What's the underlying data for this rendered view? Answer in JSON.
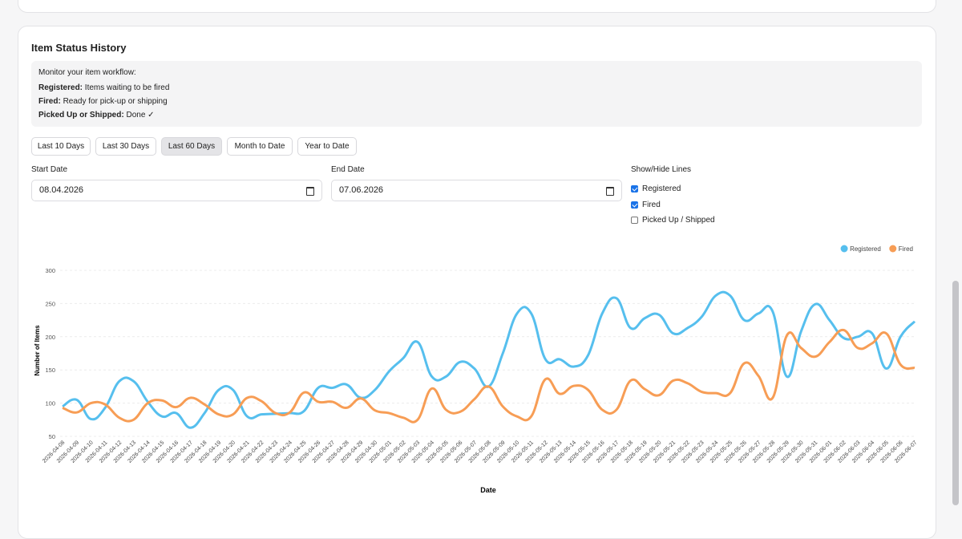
{
  "page": {
    "title": "Item Status History",
    "info": {
      "intro": "Monitor your item workflow:",
      "items": [
        {
          "term": "Registered:",
          "text": "Items waiting to be fired"
        },
        {
          "term": "Fired:",
          "text": "Ready for pick-up or shipping"
        },
        {
          "term": "Picked Up or Shipped:",
          "text": "Done ✓"
        }
      ]
    },
    "buttons": [
      {
        "label": "Last 10 Days",
        "active": false
      },
      {
        "label": "Last 30 Days",
        "active": false
      },
      {
        "label": "Last 60 Days",
        "active": true
      },
      {
        "label": "Month to Date",
        "active": false
      },
      {
        "label": "Year to Date",
        "active": false
      }
    ],
    "start_date": {
      "label": "Start Date",
      "value": "08.04.2026"
    },
    "end_date": {
      "label": "End Date",
      "value": "07.06.2026"
    },
    "lines": {
      "label": "Show/Hide Lines",
      "options": [
        {
          "label": "Registered",
          "checked": true
        },
        {
          "label": "Fired",
          "checked": true
        },
        {
          "label": "Picked Up / Shipped",
          "checked": false
        }
      ]
    }
  },
  "chart_data": {
    "type": "line",
    "x_label": "Date",
    "y_label": "Number of Items",
    "categories": [
      "2026-04-08",
      "2026-04-09",
      "2026-04-10",
      "2026-04-11",
      "2026-04-12",
      "2026-04-13",
      "2026-04-14",
      "2026-04-15",
      "2026-04-16",
      "2026-04-17",
      "2026-04-18",
      "2026-04-19",
      "2026-04-20",
      "2026-04-21",
      "2026-04-22",
      "2026-04-23",
      "2026-04-24",
      "2026-04-25",
      "2026-04-26",
      "2026-04-27",
      "2026-04-28",
      "2026-04-29",
      "2026-04-30",
      "2026-05-01",
      "2026-05-02",
      "2026-05-03",
      "2026-05-04",
      "2026-05-05",
      "2026-05-06",
      "2026-05-07",
      "2026-05-08",
      "2026-05-09",
      "2026-05-10",
      "2026-05-11",
      "2026-05-12",
      "2026-05-13",
      "2026-05-14",
      "2026-05-15",
      "2026-05-16",
      "2026-05-17",
      "2026-05-18",
      "2026-05-19",
      "2026-05-20",
      "2026-05-21",
      "2026-05-22",
      "2026-05-23",
      "2026-05-24",
      "2026-05-25",
      "2026-05-26",
      "2026-05-27",
      "2026-05-28",
      "2026-05-29",
      "2026-05-30",
      "2026-05-31",
      "2026-06-01",
      "2026-06-02",
      "2026-06-03",
      "2026-06-04",
      "2026-06-05",
      "2026-06-06",
      "2026-06-07"
    ],
    "series": [
      {
        "name": "Registered",
        "color": "#56bfee",
        "values": [
          95,
          105,
          76,
          93,
          133,
          133,
          102,
          80,
          85,
          63,
          85,
          120,
          120,
          80,
          83,
          84,
          85,
          88,
          123,
          123,
          128,
          108,
          120,
          148,
          168,
          192,
          140,
          140,
          162,
          152,
          125,
          175,
          235,
          235,
          166,
          166,
          155,
          172,
          235,
          258,
          213,
          228,
          233,
          205,
          213,
          230,
          262,
          262,
          225,
          235,
          238,
          140,
          208,
          249,
          225,
          198,
          200,
          205,
          152,
          200,
          223
        ]
      },
      {
        "name": "Fired",
        "color": "#f79d55",
        "values": [
          93,
          86,
          100,
          98,
          78,
          75,
          100,
          104,
          94,
          108,
          98,
          83,
          83,
          108,
          103,
          85,
          86,
          116,
          102,
          102,
          93,
          107,
          89,
          85,
          78,
          75,
          122,
          90,
          87,
          106,
          125,
          95,
          80,
          80,
          136,
          114,
          126,
          120,
          90,
          90,
          134,
          121,
          112,
          134,
          130,
          117,
          115,
          115,
          160,
          141,
          108,
          202,
          183,
          170,
          192,
          210,
          183,
          190,
          205,
          158,
          153
        ]
      }
    ],
    "ylim": [
      50,
      300
    ],
    "yticks": [
      50,
      100,
      150,
      200,
      250,
      300
    ],
    "grid": true,
    "legend": "top-right"
  }
}
